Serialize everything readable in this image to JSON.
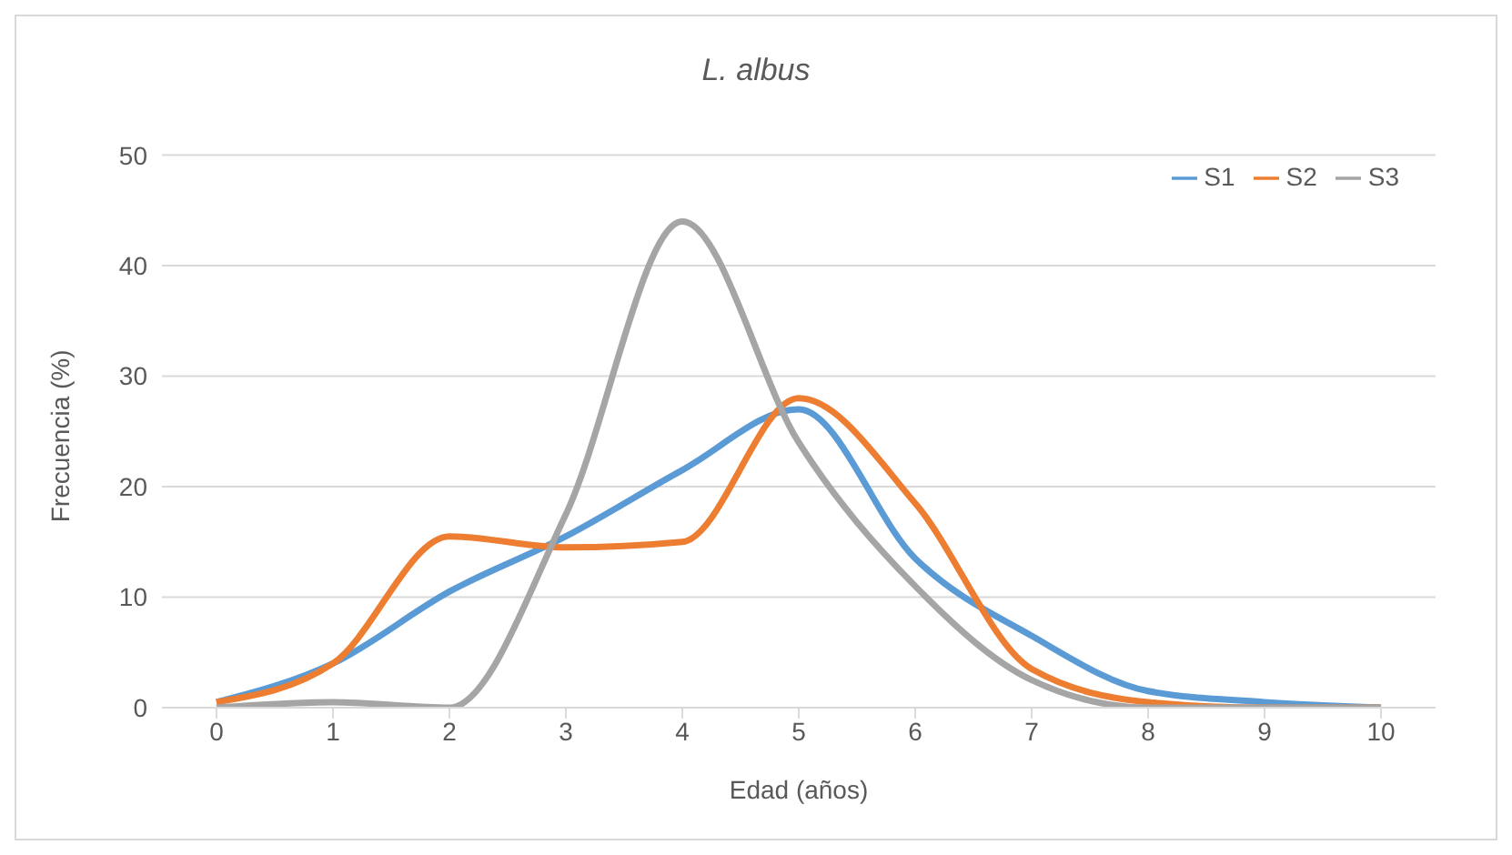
{
  "chart_data": {
    "type": "line",
    "title": "L. albus",
    "xlabel": "Edad (años)",
    "ylabel": "Frecuencia (%)",
    "categories": [
      "0",
      "1",
      "2",
      "3",
      "4",
      "5",
      "6",
      "7",
      "8",
      "9",
      "10"
    ],
    "series": [
      {
        "name": "S1",
        "color": "#5b9bd5",
        "values": [
          0.5,
          4,
          10.5,
          15.5,
          21.5,
          27,
          13.5,
          6.5,
          1.5,
          0.5,
          0
        ]
      },
      {
        "name": "S2",
        "color": "#ed7d31",
        "values": [
          0.5,
          4,
          15.5,
          14.5,
          15,
          28,
          18.5,
          3.5,
          0.5,
          0,
          0
        ]
      },
      {
        "name": "S3",
        "color": "#a5a5a5",
        "values": [
          0,
          0.5,
          0,
          17.5,
          44,
          24,
          11,
          2.5,
          0,
          0,
          0
        ]
      }
    ],
    "ylim": [
      0,
      50
    ],
    "yticks": [
      0,
      10,
      20,
      30,
      40,
      50
    ],
    "grid": "y",
    "legend": "top right",
    "marker": "none",
    "line_style": "solid"
  }
}
